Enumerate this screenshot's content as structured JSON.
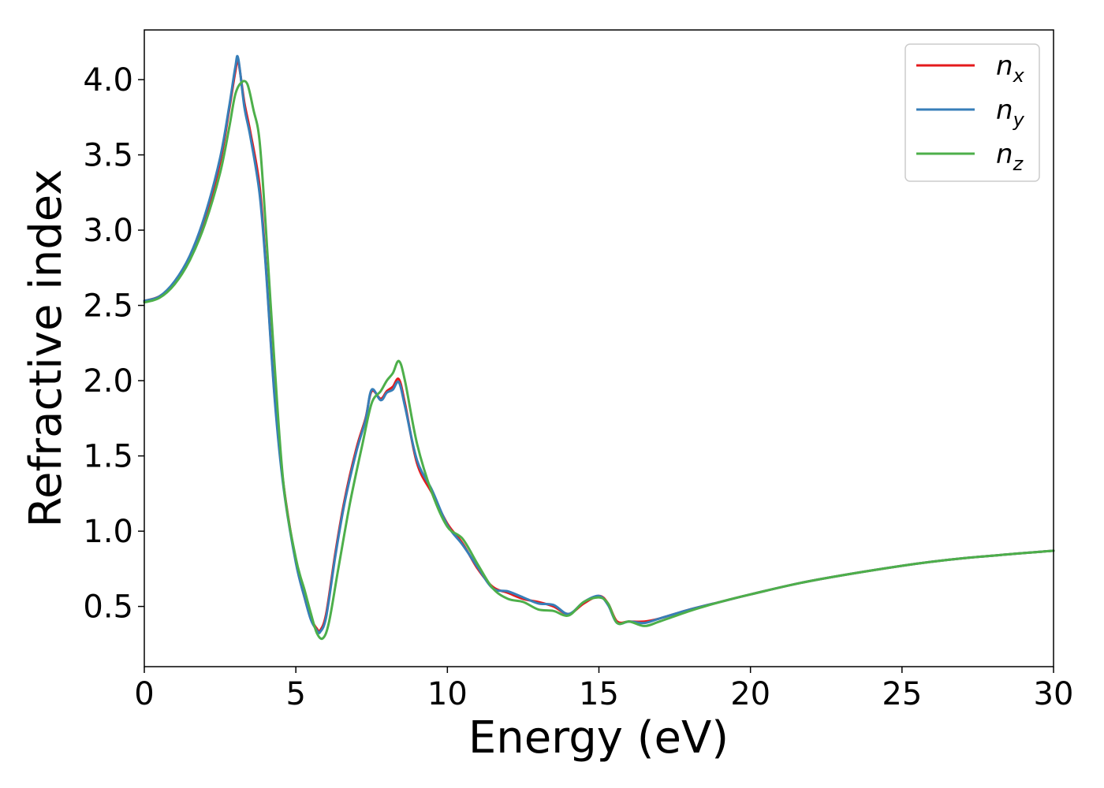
{
  "chart_data": {
    "type": "line",
    "xlabel": "Energy (eV)",
    "ylabel": "Refractive index",
    "xlim": [
      0,
      30
    ],
    "ylim": [
      0.1,
      4.33
    ],
    "xticks": [
      0,
      5,
      10,
      15,
      20,
      25,
      30
    ],
    "xtick_labels": [
      "0",
      "5",
      "10",
      "15",
      "20",
      "25",
      "30"
    ],
    "yticks": [
      0.5,
      1.0,
      1.5,
      2.0,
      2.5,
      3.0,
      3.5,
      4.0
    ],
    "ytick_labels": [
      "0.5",
      "1.0",
      "1.5",
      "2.0",
      "2.5",
      "3.0",
      "3.5",
      "4.0"
    ],
    "grid": false,
    "legend_position": "top-right",
    "series": [
      {
        "name": "n_x",
        "legend_base": "n",
        "legend_sub": "x",
        "color": "#e41a1c",
        "x": [
          0,
          0.5,
          1.0,
          1.5,
          2.0,
          2.5,
          2.8,
          3.0,
          3.1,
          3.3,
          3.5,
          3.8,
          4.0,
          4.3,
          4.6,
          5.0,
          5.3,
          5.5,
          5.7,
          5.8,
          6.0,
          6.3,
          6.6,
          7.0,
          7.3,
          7.5,
          7.8,
          8.0,
          8.2,
          8.4,
          8.6,
          9.0,
          9.5,
          10.0,
          10.5,
          11.0,
          11.5,
          12.0,
          12.5,
          13.0,
          13.5,
          14.0,
          14.5,
          15.0,
          15.3,
          15.6,
          16.0,
          16.5,
          17.0,
          18.0,
          19.0,
          20.0,
          22.0,
          25.0,
          27.0,
          30.0
        ],
        "values": [
          2.53,
          2.56,
          2.65,
          2.82,
          3.08,
          3.45,
          3.8,
          4.05,
          4.12,
          3.85,
          3.65,
          3.3,
          2.8,
          1.9,
          1.3,
          0.8,
          0.55,
          0.42,
          0.35,
          0.34,
          0.45,
          0.85,
          1.2,
          1.55,
          1.75,
          1.93,
          1.88,
          1.93,
          1.96,
          2.01,
          1.85,
          1.45,
          1.25,
          1.05,
          0.92,
          0.75,
          0.63,
          0.59,
          0.55,
          0.53,
          0.5,
          0.45,
          0.52,
          0.57,
          0.52,
          0.4,
          0.4,
          0.4,
          0.42,
          0.48,
          0.53,
          0.58,
          0.67,
          0.77,
          0.82,
          0.87
        ]
      },
      {
        "name": "n_y",
        "legend_base": "n",
        "legend_sub": "y",
        "color": "#377eb8",
        "x": [
          0,
          0.5,
          1.0,
          1.5,
          2.0,
          2.5,
          2.8,
          3.0,
          3.1,
          3.3,
          3.5,
          3.8,
          4.0,
          4.3,
          4.6,
          5.0,
          5.3,
          5.5,
          5.7,
          5.8,
          6.0,
          6.3,
          6.6,
          7.0,
          7.3,
          7.5,
          7.8,
          8.0,
          8.2,
          8.4,
          8.6,
          9.0,
          9.5,
          10.0,
          10.5,
          11.0,
          11.5,
          12.0,
          12.5,
          13.0,
          13.5,
          14.0,
          14.5,
          15.0,
          15.3,
          15.6,
          16.0,
          16.5,
          17.0,
          18.0,
          19.0,
          20.0,
          22.0,
          25.0,
          27.0,
          30.0
        ],
        "values": [
          2.53,
          2.56,
          2.66,
          2.83,
          3.1,
          3.48,
          3.82,
          4.08,
          4.14,
          3.82,
          3.62,
          3.25,
          2.78,
          1.88,
          1.28,
          0.79,
          0.55,
          0.41,
          0.34,
          0.33,
          0.43,
          0.83,
          1.18,
          1.53,
          1.74,
          1.94,
          1.87,
          1.92,
          1.94,
          1.99,
          1.83,
          1.47,
          1.27,
          1.04,
          0.91,
          0.76,
          0.62,
          0.6,
          0.56,
          0.52,
          0.51,
          0.45,
          0.53,
          0.57,
          0.51,
          0.39,
          0.4,
          0.39,
          0.42,
          0.48,
          0.53,
          0.58,
          0.67,
          0.77,
          0.82,
          0.87
        ]
      },
      {
        "name": "n_z",
        "legend_base": "n",
        "legend_sub": "z",
        "color": "#4daf4a",
        "x": [
          0,
          0.5,
          1.0,
          1.5,
          2.0,
          2.5,
          2.8,
          3.0,
          3.2,
          3.4,
          3.6,
          3.8,
          4.0,
          4.3,
          4.6,
          5.0,
          5.3,
          5.5,
          5.7,
          5.9,
          6.1,
          6.4,
          6.8,
          7.2,
          7.5,
          7.8,
          8.0,
          8.2,
          8.4,
          8.6,
          9.0,
          9.5,
          10.0,
          10.5,
          11.0,
          11.5,
          12.0,
          12.5,
          13.0,
          13.5,
          14.0,
          14.5,
          15.0,
          15.3,
          15.6,
          16.0,
          16.5,
          17.0,
          18.0,
          19.0,
          20.0,
          22.0,
          25.0,
          27.0,
          30.0
        ],
        "values": [
          2.52,
          2.55,
          2.64,
          2.8,
          3.04,
          3.38,
          3.68,
          3.9,
          3.98,
          3.97,
          3.8,
          3.6,
          3.05,
          2.1,
          1.3,
          0.82,
          0.6,
          0.45,
          0.32,
          0.29,
          0.4,
          0.75,
          1.2,
          1.58,
          1.85,
          1.93,
          2.0,
          2.05,
          2.13,
          2.0,
          1.58,
          1.25,
          1.03,
          0.95,
          0.78,
          0.62,
          0.55,
          0.53,
          0.48,
          0.47,
          0.44,
          0.53,
          0.56,
          0.52,
          0.39,
          0.4,
          0.37,
          0.4,
          0.47,
          0.53,
          0.58,
          0.67,
          0.77,
          0.82,
          0.87
        ]
      }
    ]
  }
}
